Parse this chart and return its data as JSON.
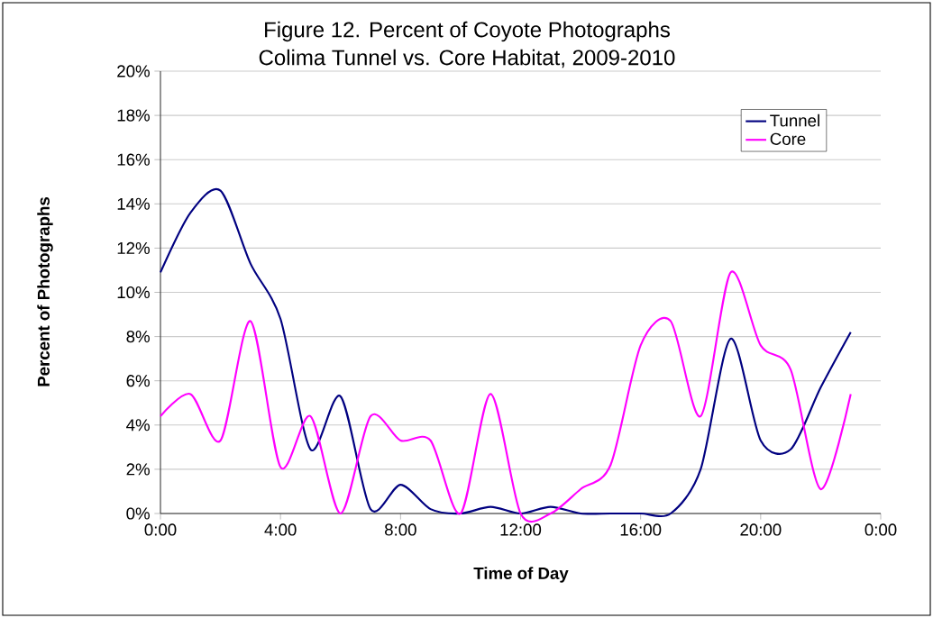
{
  "chart_data": {
    "type": "line",
    "title": "Figure 12. Percent of Coyote Photographs",
    "subtitle": "Colima Tunnel vs. Core Habitat, 2009-2010",
    "xlabel": "Time of Day",
    "ylabel": "Percent of Photographs",
    "x": [
      0,
      1,
      2,
      3,
      4,
      5,
      6,
      7,
      8,
      9,
      10,
      11,
      12,
      13,
      14,
      15,
      16,
      17,
      18,
      19,
      20,
      21,
      22,
      23
    ],
    "series": [
      {
        "name": "Tunnel",
        "color": "#000080",
        "values": [
          10.9,
          13.6,
          14.6,
          11.3,
          8.8,
          2.9,
          5.3,
          0.2,
          1.3,
          0.2,
          0,
          0.3,
          0,
          0.3,
          0,
          0,
          0,
          0,
          2.0,
          7.9,
          3.3,
          2.9,
          5.7,
          8.2
        ]
      },
      {
        "name": "Core",
        "color": "#ff00ff",
        "values": [
          4.4,
          5.4,
          3.3,
          8.7,
          2.1,
          4.4,
          0,
          4.4,
          3.3,
          3.3,
          0,
          5.4,
          0,
          0,
          1.1,
          2.2,
          7.6,
          8.7,
          4.4,
          10.9,
          7.6,
          6.5,
          1.1,
          5.4
        ]
      }
    ],
    "xlim": [
      0,
      24
    ],
    "xticks": [
      {
        "value": 0,
        "label": "0:00"
      },
      {
        "value": 4,
        "label": "4:00"
      },
      {
        "value": 8,
        "label": "8:00"
      },
      {
        "value": 12,
        "label": "12:00"
      },
      {
        "value": 16,
        "label": "16:00"
      },
      {
        "value": 20,
        "label": "20:00"
      },
      {
        "value": 24,
        "label": "0:00"
      }
    ],
    "ylim": [
      0,
      20
    ],
    "yticks": [
      {
        "value": 0,
        "label": "0%"
      },
      {
        "value": 2,
        "label": "2%"
      },
      {
        "value": 4,
        "label": "4%"
      },
      {
        "value": 6,
        "label": "6%"
      },
      {
        "value": 8,
        "label": "8%"
      },
      {
        "value": 10,
        "label": "10%"
      },
      {
        "value": 12,
        "label": "12%"
      },
      {
        "value": 14,
        "label": "14%"
      },
      {
        "value": 16,
        "label": "16%"
      },
      {
        "value": 18,
        "label": "18%"
      },
      {
        "value": 20,
        "label": "20%"
      }
    ],
    "grid": "y",
    "legend": "top right",
    "marker": "none",
    "line_style": "solid"
  }
}
